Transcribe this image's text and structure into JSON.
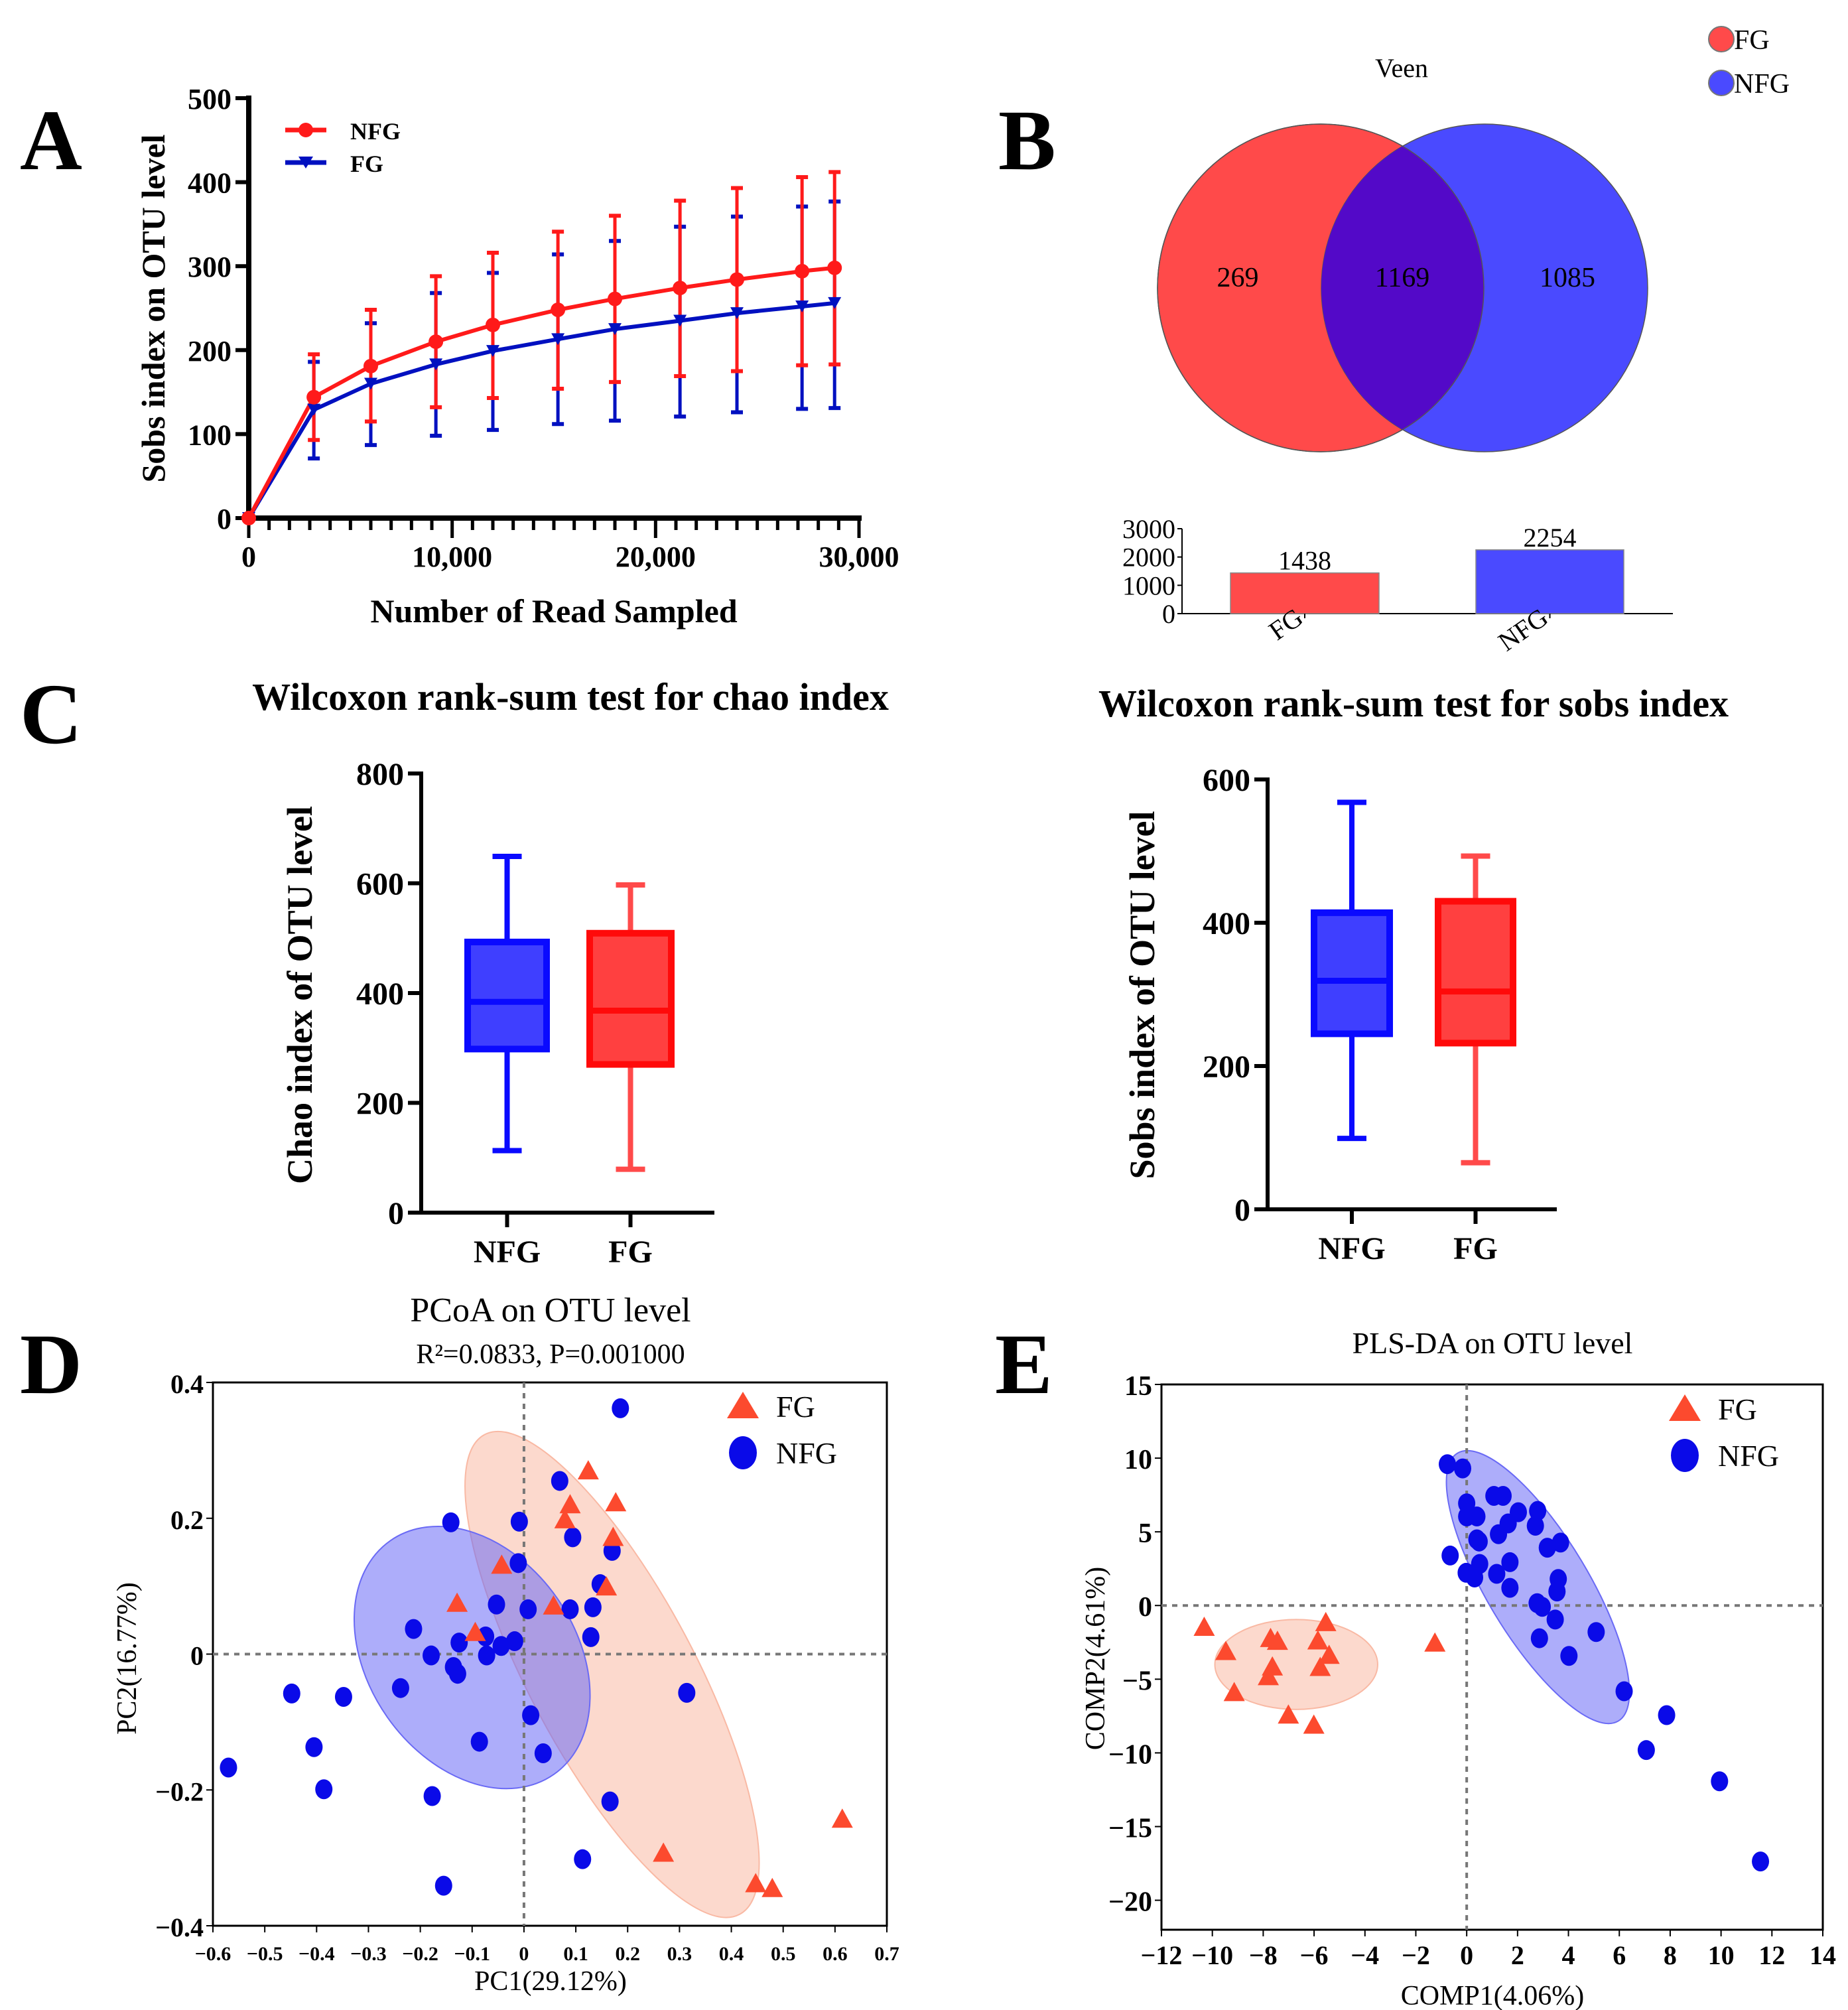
{
  "figure": {
    "panel_labels": [
      "A",
      "B",
      "C",
      "D",
      "E"
    ],
    "colors": {
      "nfg_line": "#ff1a1a",
      "fg_line": "#0010c0",
      "venn_fg": "#ff4a4a",
      "venn_nfg": "#4a4aff",
      "venn_overlap": "#5309c8",
      "box_nfg": "#0a0aff",
      "box_fg": "#ff0a0a",
      "scatter_fg": "#fc4a2e",
      "scatter_nfg": "#0a0ae8",
      "ellipse_fg": "#f9b9a4",
      "ellipse_nfg": "#6a6af5"
    }
  },
  "chart_data": [
    {
      "id": "A",
      "type": "line",
      "title": "",
      "xlabel": "Number of Read Sampled",
      "ylabel": "Sobs index on OTU level",
      "xlim": [
        0,
        30000
      ],
      "ylim": [
        0,
        500
      ],
      "xticks": [
        0,
        10000,
        20000,
        30000
      ],
      "xtick_labels": [
        "0",
        "10,000",
        "20,000",
        "30,000"
      ],
      "yticks": [
        0,
        100,
        200,
        300,
        400,
        500
      ],
      "ytick_labels": [
        "0",
        "100",
        "200",
        "300",
        "400",
        "500"
      ],
      "legend_position": "top-left",
      "x": [
        0,
        3200,
        6000,
        9200,
        12000,
        15200,
        18000,
        21200,
        24000,
        27200,
        28800
      ],
      "series": [
        {
          "name": "NFG",
          "marker": "circle",
          "values": [
            0,
            144,
            181,
            210,
            230,
            248,
            261,
            274,
            284,
            294,
            298
          ],
          "err_upper": [
            0,
            195,
            248,
            288,
            316,
            341,
            360,
            378,
            393,
            406,
            412
          ],
          "err_lower": [
            0,
            93,
            115,
            132,
            143,
            154,
            162,
            169,
            175,
            182,
            183
          ]
        },
        {
          "name": "FG",
          "marker": "triangle-down",
          "values": [
            0,
            129,
            160,
            183,
            199,
            213,
            225,
            235,
            244,
            252,
            256
          ],
          "err_upper": [
            0,
            186,
            232,
            268,
            292,
            314,
            330,
            347,
            359,
            371,
            377
          ],
          "err_lower": [
            0,
            71,
            87,
            98,
            105,
            112,
            116,
            121,
            126,
            130,
            131
          ]
        }
      ]
    },
    {
      "id": "B-venn",
      "type": "venn",
      "title": "Veen",
      "legend": [
        "FG",
        "NFG"
      ],
      "legend_position": "top-right",
      "sets": [
        {
          "name": "FG",
          "only": 269
        },
        {
          "name": "NFG",
          "only": 1085
        }
      ],
      "overlap": 1169,
      "labels": [
        "269",
        "1169",
        "1085"
      ]
    },
    {
      "id": "B-bar",
      "type": "bar",
      "title": "",
      "categories": [
        "FG",
        "NFG"
      ],
      "values": [
        1438,
        2254
      ],
      "value_labels": [
        "1438",
        "2254"
      ],
      "ylim": [
        0,
        3000
      ],
      "yticks": [
        0,
        1000,
        2000,
        3000
      ],
      "ytick_labels": [
        "0",
        "1000",
        "2000",
        "3000"
      ]
    },
    {
      "id": "C-chao",
      "type": "box",
      "title": "Wilcoxon rank-sum test for chao index",
      "ylabel": "Chao index of OTU level",
      "categories": [
        "NFG",
        "FG"
      ],
      "ylim": [
        0,
        800
      ],
      "yticks": [
        0,
        200,
        400,
        600,
        800
      ],
      "ytick_labels": [
        "0",
        "200",
        "400",
        "600",
        "800"
      ],
      "boxes": [
        {
          "name": "NFG",
          "min": 113,
          "q1": 298,
          "median": 384,
          "q3": 493,
          "max": 649
        },
        {
          "name": "FG",
          "min": 79,
          "q1": 270,
          "median": 368,
          "q3": 509,
          "max": 597
        }
      ]
    },
    {
      "id": "C-sobs",
      "type": "box",
      "title": "Wilcoxon rank-sum test for sobs index",
      "ylabel": "Sobs index of OTU level",
      "categories": [
        "NFG",
        "FG"
      ],
      "ylim": [
        0,
        600
      ],
      "yticks": [
        0,
        200,
        400,
        600
      ],
      "ytick_labels": [
        "0",
        "200",
        "400",
        "600"
      ],
      "boxes": [
        {
          "name": "NFG",
          "min": 99,
          "q1": 245,
          "median": 319,
          "q3": 414,
          "max": 568
        },
        {
          "name": "FG",
          "min": 65,
          "q1": 232,
          "median": 304,
          "q3": 430,
          "max": 493
        }
      ]
    },
    {
      "id": "D",
      "type": "scatter",
      "title": "PCoA on OTU level",
      "subtitle": "R²=0.0833, P=0.001000",
      "xlabel": "PC1(29.12%)",
      "ylabel": "PC2(16.77%)",
      "xlim": [
        -0.6,
        0.7
      ],
      "ylim": [
        -0.4,
        0.4
      ],
      "xticks": [
        -0.6,
        -0.5,
        -0.4,
        -0.3,
        -0.2,
        -0.1,
        0,
        0.1,
        0.2,
        0.3,
        0.4,
        0.5,
        0.6,
        0.7
      ],
      "xtick_labels": [
        "−0.6",
        "−0.5",
        "−0.4",
        "−0.3",
        "−0.2",
        "−0.1",
        "0",
        "0.1",
        "0.2",
        "0.3",
        "0.4",
        "0.5",
        "0.6",
        "0.7"
      ],
      "yticks": [
        -0.4,
        -0.2,
        0,
        0.2,
        0.4
      ],
      "ytick_labels": [
        "−0.4",
        "−0.2",
        "0",
        "0.2",
        "0.4"
      ],
      "legend_position": "top-right",
      "grid": false,
      "reference_lines": {
        "x": 0,
        "y": 0
      },
      "ellipses": [
        {
          "name": "FG",
          "cx": 0.17,
          "cy": -0.03,
          "rx": 0.16,
          "ry": 0.4,
          "angle_deg": -28
        },
        {
          "name": "NFG",
          "cx": -0.1,
          "cy": -0.005,
          "rx": 0.2,
          "ry": 0.21,
          "angle_deg": -35
        }
      ],
      "series": [
        {
          "name": "FG",
          "marker": "triangle",
          "points": [
            [
              0.124,
              0.269
            ],
            [
              0.089,
              0.219
            ],
            [
              0.177,
              0.222
            ],
            [
              0.079,
              0.197
            ],
            [
              0.172,
              0.171
            ],
            [
              -0.043,
              0.13
            ],
            [
              0.159,
              0.098
            ],
            [
              -0.129,
              0.074
            ],
            [
              0.057,
              0.07
            ],
            [
              -0.094,
              0.031
            ],
            [
              0.269,
              -0.294
            ],
            [
              0.614,
              -0.244
            ],
            [
              0.447,
              -0.339
            ],
            [
              0.479,
              -0.346
            ]
          ]
        },
        {
          "name": "NFG",
          "marker": "circle",
          "points": [
            [
              0.186,
              0.362
            ],
            [
              0.069,
              0.255
            ],
            [
              -0.141,
              0.194
            ],
            [
              -0.009,
              0.195
            ],
            [
              0.094,
              0.172
            ],
            [
              0.17,
              0.152
            ],
            [
              -0.011,
              0.134
            ],
            [
              0.147,
              0.103
            ],
            [
              -0.053,
              0.073
            ],
            [
              0.008,
              0.066
            ],
            [
              0.089,
              0.066
            ],
            [
              0.133,
              0.069
            ],
            [
              -0.213,
              0.037
            ],
            [
              -0.125,
              0.017
            ],
            [
              -0.074,
              0.026
            ],
            [
              -0.044,
              0.012
            ],
            [
              -0.018,
              0.019
            ],
            [
              0.129,
              0.025
            ],
            [
              -0.179,
              -0.002
            ],
            [
              -0.072,
              -0.002
            ],
            [
              -0.136,
              -0.019
            ],
            [
              -0.128,
              -0.029
            ],
            [
              -0.238,
              -0.05
            ],
            [
              -0.448,
              -0.058
            ],
            [
              -0.348,
              -0.063
            ],
            [
              0.314,
              -0.057
            ],
            [
              0.013,
              -0.09
            ],
            [
              -0.086,
              -0.129
            ],
            [
              0.037,
              -0.146
            ],
            [
              -0.405,
              -0.137
            ],
            [
              -0.57,
              -0.167
            ],
            [
              -0.386,
              -0.199
            ],
            [
              -0.177,
              -0.209
            ],
            [
              0.166,
              -0.217
            ],
            [
              0.113,
              -0.302
            ],
            [
              -0.155,
              -0.341
            ]
          ]
        }
      ]
    },
    {
      "id": "E",
      "type": "scatter",
      "title": "PLS-DA on OTU level",
      "xlabel": "COMP1(4.06%)",
      "ylabel": "COMP2(4.61%)",
      "xlim": [
        -12,
        14
      ],
      "ylim": [
        -22,
        15
      ],
      "xticks": [
        -12,
        -10,
        -8,
        -6,
        -4,
        -2,
        0,
        2,
        4,
        6,
        8,
        10,
        12,
        14
      ],
      "xtick_labels": [
        "−12",
        "−10",
        "−8",
        "−6",
        "−4",
        "−2",
        "0",
        "2",
        "4",
        "6",
        "8",
        "10",
        "12",
        "14"
      ],
      "yticks": [
        -20,
        -15,
        -10,
        -5,
        0,
        5,
        10,
        15
      ],
      "ytick_labels": [
        "−20",
        "−15",
        "−10",
        "−5",
        "0",
        "5",
        "10",
        "15"
      ],
      "legend_position": "top-right",
      "grid": false,
      "reference_lines": {
        "x": 0,
        "y": 0
      },
      "ellipses": [
        {
          "name": "FG",
          "cx": -6.7,
          "cy": -4.0,
          "rx": 3.2,
          "ry": 3.05,
          "angle_deg": 0
        },
        {
          "name": "NFG",
          "cx": 2.8,
          "cy": 1.25,
          "rx": 2.0,
          "ry": 10.6,
          "angle_deg": -31
        }
      ],
      "series": [
        {
          "name": "FG",
          "marker": "triangle",
          "points": [
            [
              -10.32,
              -1.52
            ],
            [
              -9.47,
              -3.16
            ],
            [
              -9.14,
              -5.95
            ],
            [
              -7.71,
              -2.28
            ],
            [
              -7.44,
              -2.47
            ],
            [
              -7.64,
              -4.21
            ],
            [
              -7.8,
              -4.87
            ],
            [
              -7.01,
              -7.47
            ],
            [
              -6.01,
              -8.16
            ],
            [
              -5.54,
              -1.2
            ],
            [
              -5.85,
              -2.44
            ],
            [
              -5.41,
              -3.42
            ],
            [
              -5.76,
              -4.24
            ],
            [
              -1.25,
              -2.59
            ]
          ]
        },
        {
          "name": "NFG",
          "marker": "circle",
          "points": [
            [
              -0.76,
              9.59
            ],
            [
              -0.16,
              9.3
            ],
            [
              0.0,
              6.93
            ],
            [
              0.0,
              6.04
            ],
            [
              0.4,
              6.04
            ],
            [
              1.07,
              7.44
            ],
            [
              1.43,
              7.44
            ],
            [
              2.03,
              6.33
            ],
            [
              2.79,
              6.42
            ],
            [
              2.7,
              5.41
            ],
            [
              1.63,
              5.57
            ],
            [
              1.25,
              4.84
            ],
            [
              0.4,
              4.49
            ],
            [
              0.49,
              4.34
            ],
            [
              3.17,
              3.92
            ],
            [
              3.69,
              4.27
            ],
            [
              -0.65,
              3.39
            ],
            [
              0.51,
              2.82
            ],
            [
              1.7,
              2.94
            ],
            [
              -0.02,
              2.22
            ],
            [
              0.31,
              1.9
            ],
            [
              1.18,
              2.15
            ],
            [
              3.6,
              1.8
            ],
            [
              1.7,
              1.2
            ],
            [
              3.55,
              0.95
            ],
            [
              2.77,
              0.16
            ],
            [
              2.97,
              -0.09
            ],
            [
              3.48,
              -0.95
            ],
            [
              5.09,
              -1.8
            ],
            [
              2.86,
              -2.22
            ],
            [
              4.02,
              -3.42
            ],
            [
              6.19,
              -5.82
            ],
            [
              7.86,
              -7.44
            ],
            [
              7.06,
              -9.81
            ],
            [
              9.94,
              -11.93
            ],
            [
              11.55,
              -17.37
            ]
          ]
        }
      ]
    }
  ]
}
